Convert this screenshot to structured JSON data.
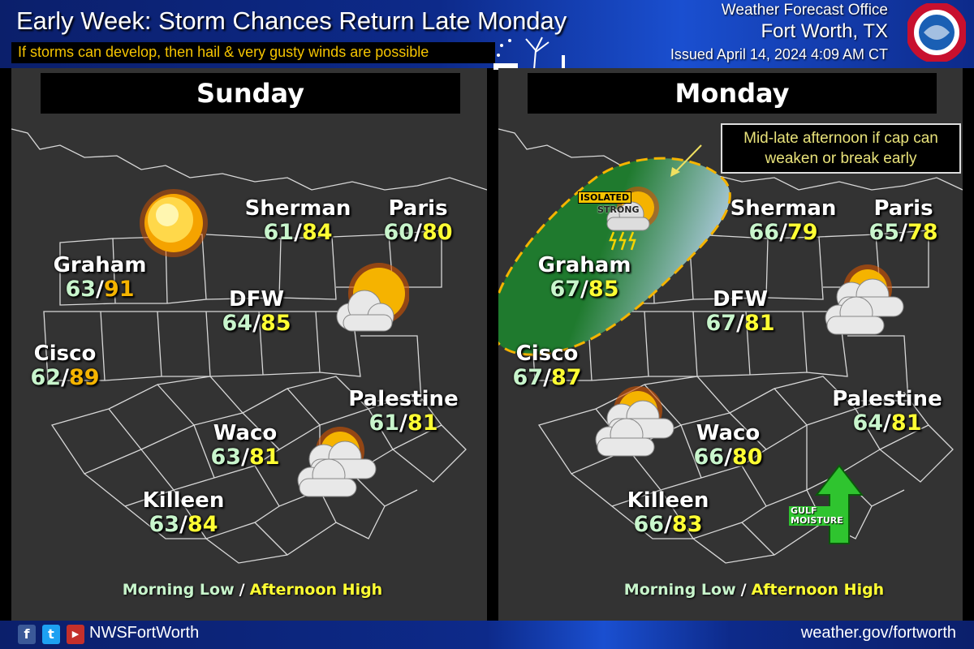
{
  "header": {
    "title": "Early Week: Storm Chances Return Late Monday",
    "subtitle": "If storms can develop, then hail & very gusty winds are possible",
    "office_line1": "Weather Forecast Office",
    "office_line2": "Fort Worth, TX",
    "issued": "Issued April 14, 2024 4:09 AM CT",
    "logo_text": "NATIONAL WEATHER SERVICE"
  },
  "colors": {
    "low": "#c8f5cc",
    "high": "#ffff33",
    "high_hot": "#f5b400",
    "storm_area": "#1f7a2e",
    "storm_outline": "#f5b400",
    "header_blue": "#0d2a8a"
  },
  "sunday": {
    "day": "Sunday",
    "cities": [
      {
        "name": "Sherman",
        "low": "61",
        "high": "84",
        "high_color": "#ffff33"
      },
      {
        "name": "Paris",
        "low": "60",
        "high": "80",
        "high_color": "#ffff33"
      },
      {
        "name": "Graham",
        "low": "63",
        "high": "91",
        "high_color": "#f5b400"
      },
      {
        "name": "DFW",
        "low": "64",
        "high": "85",
        "high_color": "#ffff33"
      },
      {
        "name": "Cisco",
        "low": "62",
        "high": "89",
        "high_color": "#f5b400"
      },
      {
        "name": "Palestine",
        "low": "61",
        "high": "81",
        "high_color": "#ffff33"
      },
      {
        "name": "Waco",
        "low": "63",
        "high": "81",
        "high_color": "#ffff33"
      },
      {
        "name": "Killeen",
        "low": "63",
        "high": "84",
        "high_color": "#ffff33"
      }
    ],
    "icons": [
      "sunny-icon",
      "partly-sunny-icon",
      "mostly-cloudy-icon"
    ],
    "legend_low": "Morning Low",
    "legend_sep": "/",
    "legend_high": "Afternoon High"
  },
  "monday": {
    "day": "Monday",
    "note": "Mid-late afternoon if cap can weaken or break early",
    "storm_label_1": "ISOLATED",
    "storm_label_2": "STRONG",
    "gulf_label_1": "GULF",
    "gulf_label_2": "MOISTURE",
    "cities": [
      {
        "name": "Sherman",
        "low": "66",
        "high": "79",
        "high_color": "#ffff33"
      },
      {
        "name": "Paris",
        "low": "65",
        "high": "78",
        "high_color": "#ffff33"
      },
      {
        "name": "Graham",
        "low": "67",
        "high": "85",
        "high_color": "#ffff33"
      },
      {
        "name": "DFW",
        "low": "67",
        "high": "81",
        "high_color": "#ffff33"
      },
      {
        "name": "Cisco",
        "low": "67",
        "high": "87",
        "high_color": "#ffff33"
      },
      {
        "name": "Palestine",
        "low": "64",
        "high": "81",
        "high_color": "#ffff33"
      },
      {
        "name": "Waco",
        "low": "66",
        "high": "80",
        "high_color": "#ffff33"
      },
      {
        "name": "Killeen",
        "low": "66",
        "high": "83",
        "high_color": "#ffff33"
      }
    ],
    "legend_low": "Morning Low",
    "legend_sep": "/",
    "legend_high": "Afternoon High"
  },
  "footer": {
    "handle": "NWSFortWorth",
    "site": "weather.gov/fortworth",
    "social": [
      "facebook-icon",
      "twitter-icon",
      "youtube-icon"
    ]
  }
}
